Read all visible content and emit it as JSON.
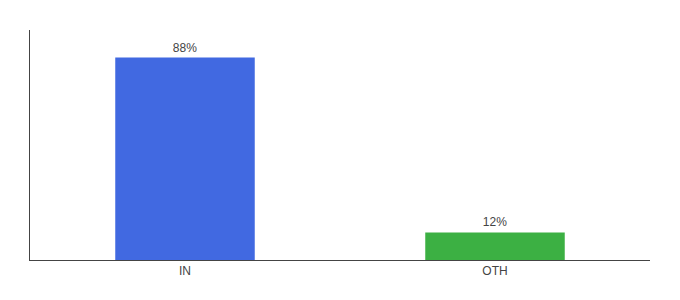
{
  "chart_data": {
    "type": "bar",
    "categories": [
      "IN",
      "OTH"
    ],
    "values": [
      88,
      12
    ],
    "value_labels": [
      "88%",
      "12%"
    ],
    "colors": [
      "#4169e1",
      "#3cb043"
    ],
    "ylim": [
      0,
      100
    ],
    "yticks": [],
    "grid": false,
    "data_labels": true,
    "tick_labels": "x"
  }
}
